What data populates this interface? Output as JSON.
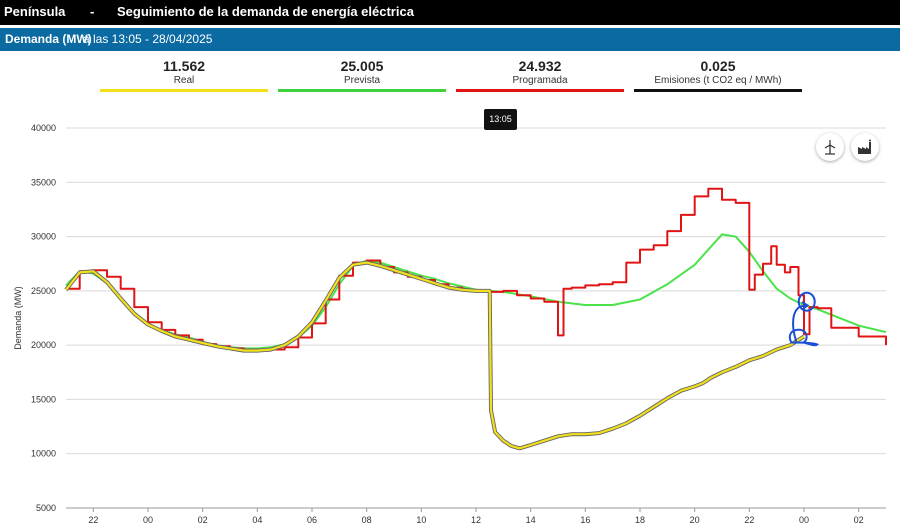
{
  "header": {
    "title": "Península",
    "separator": "-",
    "subtitle": "Seguimiento de la demanda de energía eléctrica"
  },
  "subheader": {
    "label": "Demanda (MW)",
    "time_text": "a las 13:05 - 28/04/2025"
  },
  "stats": [
    {
      "value": "11.562",
      "label": "Real",
      "color": "#f2e01c"
    },
    {
      "value": "25.005",
      "label": "Prevista",
      "color": "#3ed13e"
    },
    {
      "value": "24.932",
      "label": "Programada",
      "color": "#e01414"
    },
    {
      "value": "0.025",
      "label": "Emisiones (t CO2 eq / MWh)",
      "color": "#111111"
    }
  ],
  "tooltip": "13:05",
  "icons": {
    "left": "wind-turbine-icon",
    "right": "factory-icon"
  },
  "chart_data": {
    "type": "line",
    "title": "",
    "ylabel": "Demanda (MW)",
    "ylim": [
      5000,
      40000
    ],
    "yticks": [
      "40000",
      "35000",
      "30000",
      "25000",
      "20000",
      "15000",
      "10000",
      "5000"
    ],
    "ytick_values": [
      40000,
      35000,
      30000,
      25000,
      20000,
      15000,
      10000,
      5000
    ],
    "xticks": [
      "22",
      "00",
      "02",
      "04",
      "06",
      "08",
      "10",
      "12",
      "14",
      "16",
      "18",
      "20",
      "22",
      "00",
      "02"
    ],
    "x_tick_hours": [
      -2,
      0,
      2,
      4,
      6,
      8,
      10,
      12,
      14,
      16,
      18,
      20,
      22,
      24,
      26
    ],
    "xlim": [
      -3.0,
      27.0
    ],
    "grid": true,
    "series": [
      {
        "name": "Prevista",
        "color": "#4ce24c",
        "step": false,
        "x": [
          -3.0,
          -2.5,
          -2,
          -1.5,
          -1,
          -0.5,
          0,
          0.5,
          1,
          1.5,
          2,
          2.5,
          3,
          3.5,
          4,
          4.5,
          5,
          5.5,
          6,
          6.5,
          7,
          7.5,
          8,
          8.5,
          9,
          9.5,
          10,
          10.5,
          11,
          11.5,
          12,
          12.5,
          13,
          14,
          15,
          16,
          17,
          18,
          19,
          20,
          20.5,
          21,
          21.5,
          22,
          22.5,
          23,
          23.5,
          24,
          24.5,
          25,
          26,
          27
        ],
        "y": [
          25500,
          26800,
          26600,
          25700,
          24400,
          23000,
          22000,
          21400,
          21000,
          20700,
          20300,
          20000,
          19800,
          19700,
          19700,
          19800,
          20100,
          20700,
          21800,
          23500,
          25600,
          27300,
          27800,
          27600,
          27200,
          26800,
          26400,
          26100,
          25700,
          25400,
          25100,
          25000,
          24900,
          24500,
          24000,
          23700,
          23700,
          24200,
          25600,
          27400,
          28800,
          30200,
          30000,
          28600,
          26800,
          25200,
          24300,
          23700,
          23300,
          22800,
          21800,
          21200
        ]
      },
      {
        "name": "Programada",
        "color": "#e01414",
        "step": true,
        "x": [
          -3.0,
          -2.5,
          -2,
          -1.5,
          -1,
          -0.5,
          0,
          0.5,
          1,
          1.5,
          2,
          2.5,
          3,
          3.5,
          4,
          4.5,
          5,
          5.5,
          6,
          6.5,
          7,
          7.5,
          8,
          8.5,
          9,
          9.5,
          10,
          10.5,
          11,
          11.5,
          12,
          12.5,
          13,
          13.5,
          14,
          14.5,
          15,
          15.2,
          15.5,
          16,
          16.5,
          17,
          17.5,
          18,
          18.5,
          19,
          19.5,
          20,
          20.5,
          21,
          21.5,
          22,
          22.2,
          22.5,
          22.8,
          23,
          23.3,
          23.5,
          23.8,
          24,
          24.2,
          24.5,
          25,
          26,
          27
        ],
        "y": [
          25200,
          26800,
          26900,
          26300,
          25200,
          23500,
          22100,
          21400,
          20900,
          20500,
          20100,
          19900,
          19700,
          19600,
          19500,
          19600,
          19800,
          20700,
          22000,
          24200,
          26400,
          27600,
          27800,
          27200,
          26700,
          26300,
          26000,
          25600,
          25300,
          25100,
          25000,
          24900,
          25000,
          24600,
          24300,
          24000,
          20900,
          25200,
          25300,
          25500,
          25600,
          25800,
          27600,
          28800,
          29200,
          30500,
          32000,
          33700,
          34400,
          33400,
          33100,
          25100,
          26500,
          27500,
          29100,
          27400,
          26700,
          27200,
          24600,
          21000,
          23500,
          23400,
          21600,
          20800,
          20000
        ]
      },
      {
        "name": "Real",
        "color": "#f2e01c",
        "step": false,
        "x": [
          -3.0,
          -2.5,
          -2,
          -1.5,
          -1,
          -0.5,
          0,
          0.5,
          1,
          1.5,
          2,
          2.5,
          3,
          3.5,
          4,
          4.5,
          5,
          5.5,
          6,
          6.5,
          7,
          7.5,
          8,
          8.5,
          9,
          9.5,
          10,
          10.5,
          11,
          11.5,
          12,
          12.5,
          12.55,
          12.7,
          13,
          13.3,
          13.6,
          14,
          14.5,
          15,
          15.5,
          16,
          16.5,
          17,
          17.5,
          18,
          18.5,
          19,
          19.5,
          20,
          20.3,
          20.6,
          21,
          21.5,
          22,
          22.5,
          23,
          23.5,
          24
        ],
        "y": [
          25100,
          26700,
          26800,
          25800,
          24300,
          22900,
          21900,
          21300,
          20800,
          20500,
          20200,
          19900,
          19700,
          19500,
          19500,
          19600,
          20000,
          20800,
          22100,
          24100,
          26200,
          27400,
          27600,
          27300,
          26900,
          26500,
          26100,
          25700,
          25300,
          25100,
          25000,
          25000,
          14000,
          12000,
          11200,
          10700,
          10500,
          10800,
          11200,
          11600,
          11800,
          11800,
          11900,
          12300,
          12800,
          13500,
          14300,
          15100,
          15800,
          16200,
          16500,
          17000,
          17500,
          18000,
          18600,
          19000,
          19600,
          20000,
          20800
        ]
      }
    ],
    "annotations": [
      {
        "shape": "circle",
        "x": 24.1,
        "y": 24000,
        "color": "#1a4fd6"
      },
      {
        "shape": "hook",
        "x": 23.8,
        "y": 23200,
        "color": "#1a4fd6"
      },
      {
        "shape": "loop",
        "x": 23.9,
        "y": 20800,
        "color": "#1a4fd6"
      }
    ]
  }
}
